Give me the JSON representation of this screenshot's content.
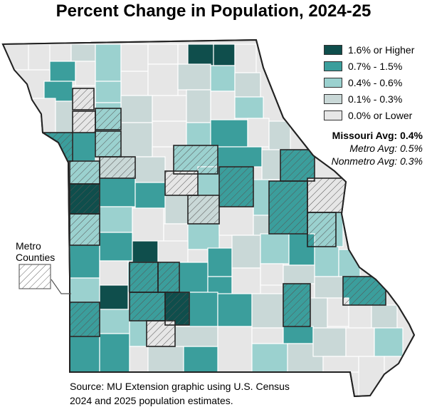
{
  "title": "Percent Change in Population, 2024-25",
  "legend": [
    {
      "label": "1.6% or Higher",
      "color": "#0f4e4c"
    },
    {
      "label": "0.7% - 1.5%",
      "color": "#3b9e9c"
    },
    {
      "label": "0.4% - 0.6%",
      "color": "#9bd1cf"
    },
    {
      "label": "0.1% - 0.3%",
      "color": "#c9d8d7"
    },
    {
      "label": "0.0% or Lower",
      "color": "#e6e6e6"
    }
  ],
  "averages": {
    "missouri": "Missouri Avg: 0.4%",
    "metro": "Metro Avg: 0.5%",
    "nonmetro": "Nonmetro Avg: 0.3%"
  },
  "metro_legend": {
    "line1": "Metro",
    "line2": "Counties"
  },
  "source": {
    "line1": "Source: MU Extension graphic using U.S. Census",
    "line2": "2024 and 2025 population estimates."
  }
}
